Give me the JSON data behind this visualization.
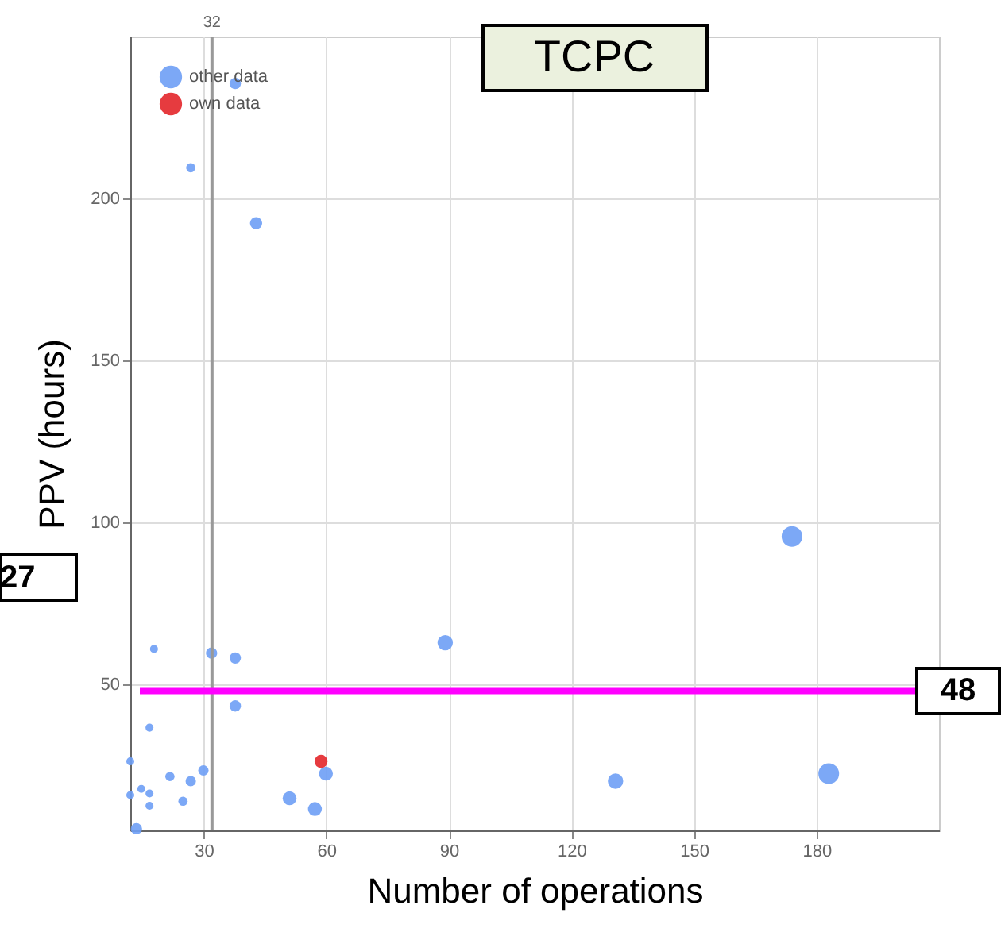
{
  "chart_data": {
    "type": "bubble",
    "title": "TCPC",
    "xlabel": "Number of operations",
    "ylabel": "PPV (hours)",
    "xlim": [
      12,
      210
    ],
    "xticks": [
      30,
      60,
      90,
      120,
      150,
      180
    ],
    "ylim": [
      5,
      250
    ],
    "yticks": [
      50,
      100,
      150,
      200
    ],
    "grid": true,
    "legend": "top left",
    "series": [
      {
        "name": "other data",
        "color": "#6e9ef5",
        "x": [
          37.7,
          26.8,
          42.8,
          174,
          17.8,
          31.9,
          37.7,
          89.1,
          37.7,
          16.7,
          12,
          21.7,
          26.8,
          29.9,
          59.9,
          14.7,
          16.7,
          12,
          24.9,
          16.7,
          51,
          57.2,
          13.5,
          130.8,
          183
        ],
        "values": [
          235.5,
          209.5,
          192.4,
          95.7,
          61,
          59.7,
          58.2,
          62.9,
          43.4,
          36.7,
          26.3,
          21.6,
          20.2,
          23.5,
          22.5,
          17.8,
          16.4,
          15.9,
          14.0,
          12.6,
          14.9,
          11.6,
          5.5,
          20.2,
          22.5
        ],
        "sizes": [
          0.3,
          0.2,
          0.35,
          1,
          0.15,
          0.3,
          0.3,
          0.55,
          0.3,
          0.15,
          0.15,
          0.2,
          0.25,
          0.25,
          0.45,
          0.15,
          0.15,
          0.15,
          0.2,
          0.15,
          0.45,
          0.45,
          0.3,
          0.55,
          1
        ]
      },
      {
        "name": "own data",
        "color": "#e3262a",
        "x": [
          58.7
        ],
        "values": [
          26.3
        ],
        "sizes": [
          0.4
        ]
      }
    ],
    "ref_lines": [
      {
        "axis": "x",
        "value": 32,
        "label": "32",
        "color": "#999999"
      },
      {
        "axis": "y",
        "value": 48,
        "label": "48",
        "color": "#ff00ff"
      }
    ],
    "annotations": [
      "27"
    ]
  }
}
